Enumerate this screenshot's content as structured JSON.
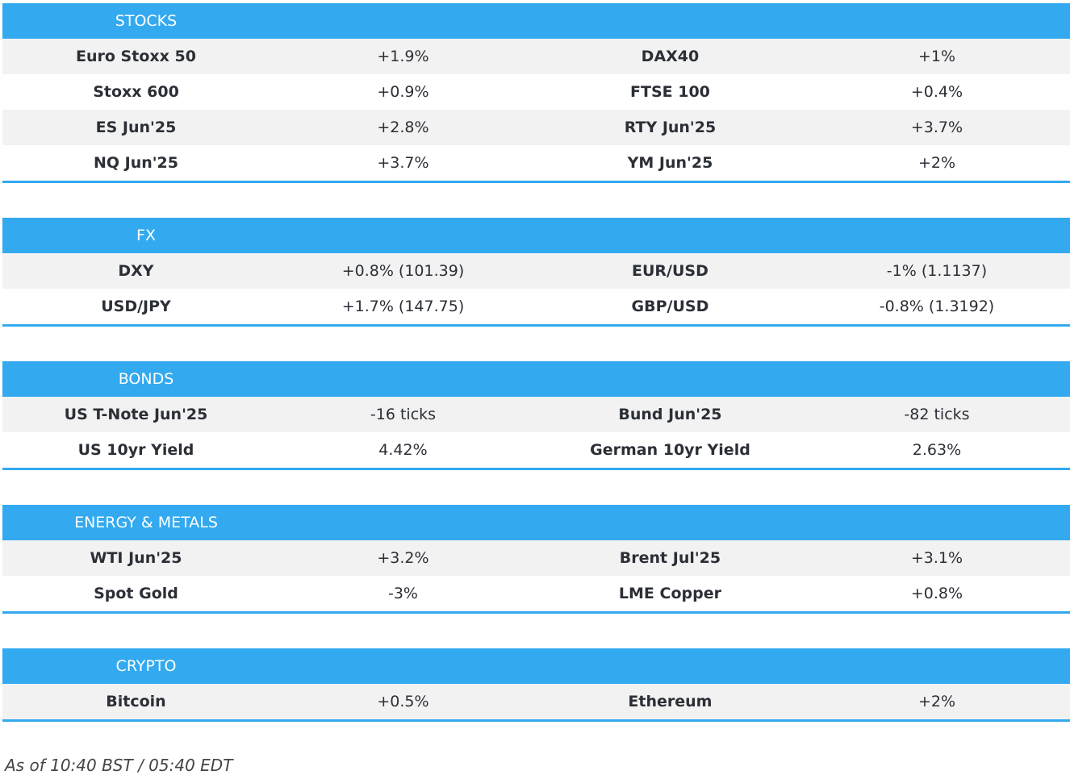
{
  "sections": [
    {
      "title": "STOCKS",
      "rows": [
        [
          "Euro Stoxx 50",
          "+1.9%",
          "DAX40",
          "+1%"
        ],
        [
          "Stoxx 600",
          "+0.9%",
          "FTSE 100",
          "+0.4%"
        ],
        [
          "ES Jun'25",
          "+2.8%",
          "RTY Jun'25",
          "+3.7%"
        ],
        [
          "NQ Jun'25",
          "+3.7%",
          "YM Jun'25",
          "+2%"
        ]
      ]
    },
    {
      "title": "FX",
      "rows": [
        [
          "DXY",
          "+0.8% (101.39)",
          "EUR/USD",
          "-1% (1.1137)"
        ],
        [
          "USD/JPY",
          "+1.7% (147.75)",
          "GBP/USD",
          "-0.8% (1.3192)"
        ]
      ]
    },
    {
      "title": "BONDS",
      "rows": [
        [
          "US T-Note Jun'25",
          "-16 ticks",
          "Bund Jun'25",
          "-82 ticks"
        ],
        [
          "US 10yr Yield",
          "4.42%",
          "German 10yr Yield",
          "2.63%"
        ]
      ]
    },
    {
      "title": "ENERGY & METALS",
      "rows": [
        [
          "WTI Jun'25",
          "+3.2%",
          "Brent Jul'25",
          "+3.1%"
        ],
        [
          "Spot Gold",
          "-3%",
          "LME Copper",
          "+0.8%"
        ]
      ]
    },
    {
      "title": "CRYPTO",
      "rows": [
        [
          "Bitcoin",
          "+0.5%",
          "Ethereum",
          "+2%"
        ]
      ]
    }
  ],
  "footer": "As of 10:40 BST / 05:40 EDT"
}
